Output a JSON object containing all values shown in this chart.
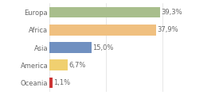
{
  "categories": [
    "Europa",
    "Africa",
    "Asia",
    "America",
    "Oceania"
  ],
  "values": [
    39.3,
    37.9,
    15.0,
    6.7,
    1.1
  ],
  "labels": [
    "39,3%",
    "37,9%",
    "15,0%",
    "6,7%",
    "1,1%"
  ],
  "bar_colors": [
    "#a8be8c",
    "#f0c080",
    "#7090c0",
    "#f0d070",
    "#cc3333"
  ],
  "background_color": "#ffffff",
  "text_color": "#666666",
  "label_fontsize": 6.0,
  "tick_fontsize": 6.0,
  "xlim": [
    0,
    52
  ],
  "bar_height": 0.62,
  "grid_color": "#dddddd",
  "figsize": [
    2.8,
    1.2
  ],
  "dpi": 100
}
